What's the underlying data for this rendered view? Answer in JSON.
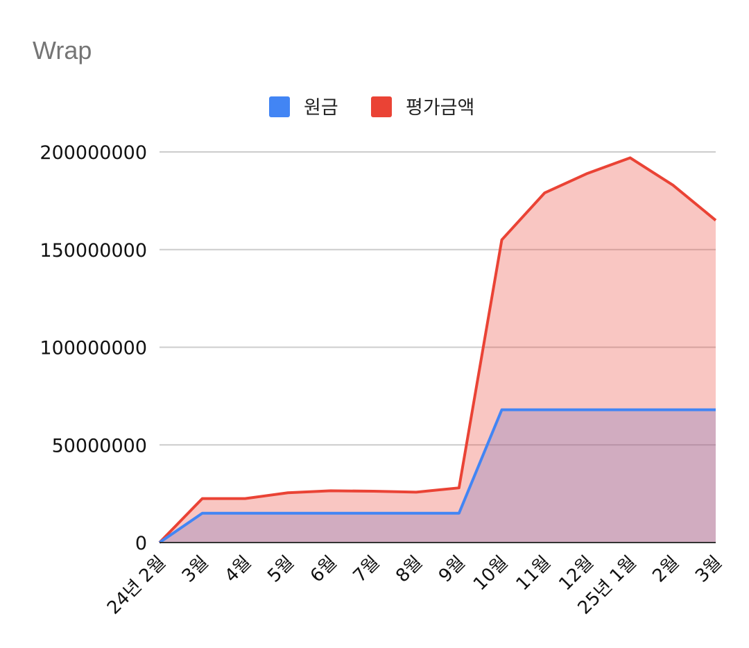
{
  "chart_data": {
    "type": "area",
    "title": "Wrap",
    "categories": [
      "24년 2월",
      "3월",
      "4월",
      "5월",
      "6월",
      "7월",
      "8월",
      "9월",
      "10월",
      "11월",
      "12월",
      "25년 1월",
      "2월",
      "3월"
    ],
    "series": [
      {
        "name": "원금",
        "color": "#4285f4",
        "values": [
          0,
          15000000,
          15000000,
          15000000,
          15000000,
          15000000,
          15000000,
          15000000,
          68000000,
          68000000,
          68000000,
          68000000,
          68000000,
          68000000
        ]
      },
      {
        "name": "평가금액",
        "color": "#ea4335",
        "values": [
          0,
          22500000,
          22500000,
          25500000,
          26500000,
          26300000,
          25800000,
          28000000,
          155000000,
          179000000,
          189000000,
          197000000,
          183000000,
          165000000
        ]
      }
    ],
    "yticks": [
      "0",
      "50000000",
      "100000000",
      "150000000",
      "200000000"
    ],
    "ylim": [
      0,
      200000000
    ],
    "grid": true,
    "legend_position": "top"
  }
}
